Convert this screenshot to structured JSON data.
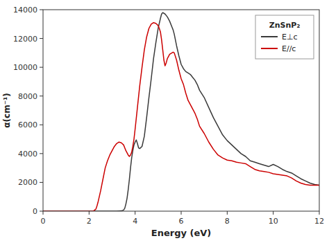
{
  "chart_data": {
    "type": "line",
    "xlabel": "Energy (eV)",
    "ylabel": "α(cm⁻¹)",
    "xlim": [
      0,
      12
    ],
    "ylim": [
      0,
      14000
    ],
    "xticks": [
      0,
      2,
      4,
      6,
      8,
      10,
      12
    ],
    "yticks": [
      0,
      2000,
      4000,
      6000,
      8000,
      10000,
      12000,
      14000
    ],
    "grid": false,
    "legend": "upper right",
    "legend_title": "ZnSnP₂",
    "series": [
      {
        "name": "E⊥c",
        "color": "#3a3a3a",
        "x": [
          0.0,
          0.5,
          1.0,
          1.5,
          2.0,
          2.5,
          3.0,
          3.2,
          3.4,
          3.5,
          3.55,
          3.6,
          3.65,
          3.7,
          3.75,
          3.8,
          3.85,
          3.9,
          3.95,
          4.0,
          4.05,
          4.1,
          4.15,
          4.2,
          4.3,
          4.4,
          4.5,
          4.6,
          4.7,
          4.8,
          4.9,
          5.0,
          5.1,
          5.15,
          5.2,
          5.3,
          5.4,
          5.5,
          5.6,
          5.65,
          5.7,
          5.8,
          5.9,
          6.0,
          6.1,
          6.2,
          6.3,
          6.4,
          6.5,
          6.6,
          6.7,
          6.8,
          7.0,
          7.2,
          7.4,
          7.6,
          7.8,
          8.0,
          8.2,
          8.4,
          8.6,
          8.8,
          9.0,
          9.2,
          9.4,
          9.6,
          9.8,
          10.0,
          10.2,
          10.4,
          10.6,
          10.8,
          11.0,
          11.2,
          11.4,
          11.6,
          11.8,
          12.0
        ],
        "values": [
          0,
          0,
          0,
          0,
          0,
          0,
          0,
          0,
          20,
          80,
          200,
          500,
          900,
          1500,
          2200,
          3000,
          3700,
          4200,
          4600,
          4800,
          4950,
          4700,
          4400,
          4350,
          4500,
          5200,
          6500,
          7900,
          9200,
          10600,
          11700,
          12700,
          13400,
          13700,
          13800,
          13700,
          13500,
          13200,
          12800,
          12600,
          12300,
          11500,
          10800,
          10200,
          9900,
          9700,
          9600,
          9500,
          9300,
          9100,
          8800,
          8400,
          7900,
          7200,
          6500,
          5900,
          5300,
          4900,
          4600,
          4300,
          4000,
          3800,
          3500,
          3400,
          3300,
          3200,
          3100,
          3250,
          3100,
          2900,
          2750,
          2650,
          2450,
          2250,
          2100,
          1950,
          1850,
          1800
        ]
      },
      {
        "name": "E//c",
        "color": "#cc0000",
        "x": [
          0.0,
          0.5,
          1.0,
          1.5,
          2.0,
          2.1,
          2.2,
          2.3,
          2.35,
          2.4,
          2.5,
          2.6,
          2.7,
          2.8,
          2.9,
          3.0,
          3.1,
          3.2,
          3.3,
          3.4,
          3.5,
          3.6,
          3.7,
          3.75,
          3.8,
          3.85,
          3.9,
          3.95,
          4.0,
          4.1,
          4.2,
          4.3,
          4.4,
          4.5,
          4.6,
          4.7,
          4.8,
          4.9,
          5.0,
          5.05,
          5.1,
          5.15,
          5.2,
          5.25,
          5.3,
          5.35,
          5.4,
          5.5,
          5.6,
          5.65,
          5.7,
          5.8,
          5.9,
          6.0,
          6.1,
          6.2,
          6.3,
          6.4,
          6.5,
          6.6,
          6.7,
          6.8,
          7.0,
          7.2,
          7.4,
          7.6,
          7.8,
          8.0,
          8.2,
          8.4,
          8.6,
          8.8,
          9.0,
          9.2,
          9.4,
          9.6,
          9.8,
          10.0,
          10.2,
          10.4,
          10.6,
          10.8,
          11.0,
          11.2,
          11.4,
          11.6,
          11.8,
          12.0
        ],
        "values": [
          0,
          0,
          0,
          0,
          0,
          0,
          20,
          150,
          400,
          700,
          1400,
          2200,
          3000,
          3500,
          3900,
          4200,
          4500,
          4700,
          4800,
          4750,
          4600,
          4200,
          3900,
          3800,
          3900,
          4100,
          4500,
          5000,
          5700,
          7200,
          8700,
          10000,
          11200,
          12100,
          12700,
          13000,
          13100,
          13050,
          12900,
          12700,
          12450,
          11900,
          11200,
          10500,
          10100,
          10300,
          10600,
          10900,
          11000,
          11050,
          11000,
          10500,
          9800,
          9200,
          8800,
          8200,
          7700,
          7400,
          7100,
          6800,
          6400,
          5900,
          5400,
          4800,
          4300,
          3900,
          3700,
          3550,
          3500,
          3400,
          3350,
          3300,
          3100,
          2900,
          2800,
          2750,
          2700,
          2600,
          2550,
          2500,
          2450,
          2300,
          2100,
          1950,
          1850,
          1800,
          1800,
          1800
        ]
      }
    ]
  }
}
